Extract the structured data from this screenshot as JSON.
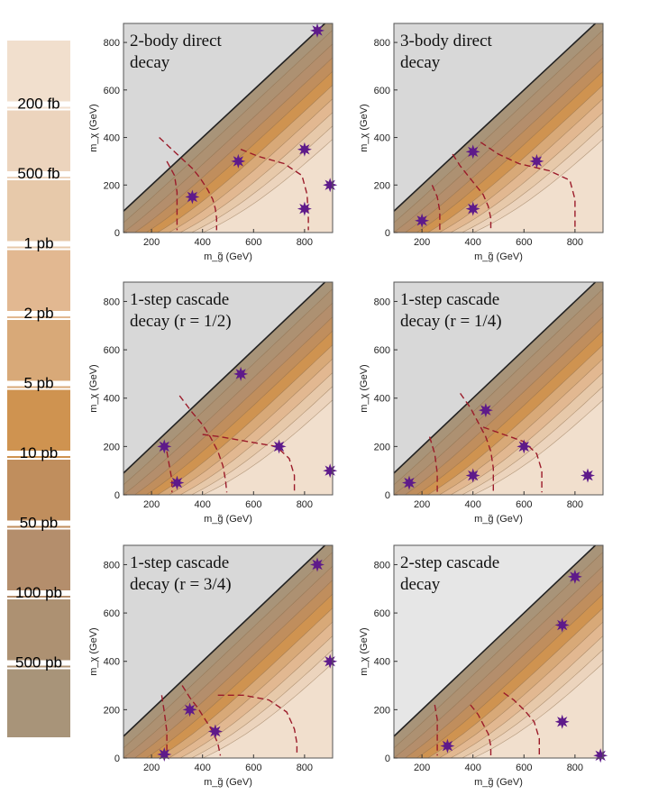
{
  "legend": {
    "swatches": [
      "#f1dfcd",
      "#ecd4bd",
      "#e7c9aa",
      "#e2b891",
      "#d8a978",
      "#cf9350",
      "#c08e5d",
      "#b48e6c",
      "#ad9172",
      "#a89479"
    ],
    "labels": [
      "200 fb",
      "500 fb",
      "1 pb",
      "2 pb",
      "5 pb",
      "10 pb",
      "50 pb",
      "100 pb",
      "500 pb"
    ]
  },
  "chart_data": [
    {
      "type": "contour",
      "title_lines": [
        "2-body direct",
        "decay"
      ],
      "xlabel": "m_g̃ (GeV)",
      "ylabel": "m_χ (GeV)",
      "xlim": [
        90,
        910
      ],
      "ylim": [
        0,
        880
      ],
      "xticks": [
        200,
        400,
        600,
        800
      ],
      "yticks": [
        0,
        200,
        400,
        600,
        800
      ],
      "excluded_region_color": "#d8d8d8",
      "benchmarks": [
        [
          360,
          150
        ],
        [
          540,
          300
        ],
        [
          850,
          850
        ],
        [
          800,
          350
        ],
        [
          800,
          100
        ],
        [
          900,
          200
        ]
      ],
      "dashed_curves": [
        [
          [
            230,
            400
          ],
          [
            270,
            360
          ],
          [
            320,
            310
          ],
          [
            360,
            270
          ],
          [
            390,
            230
          ],
          [
            420,
            180
          ],
          [
            440,
            140
          ],
          [
            450,
            100
          ],
          [
            455,
            60
          ],
          [
            455,
            10
          ]
        ],
        [
          [
            550,
            350
          ],
          [
            620,
            320
          ],
          [
            720,
            290
          ],
          [
            790,
            240
          ],
          [
            810,
            160
          ],
          [
            815,
            60
          ],
          [
            815,
            10
          ]
        ],
        [
          [
            260,
            300
          ],
          [
            290,
            240
          ],
          [
            300,
            170
          ],
          [
            300,
            90
          ],
          [
            300,
            10
          ]
        ]
      ]
    },
    {
      "type": "contour",
      "title_lines": [
        "3-body direct",
        "decay"
      ],
      "xlabel": "m_g̃ (GeV)",
      "ylabel": "m_χ (GeV)",
      "xlim": [
        90,
        910
      ],
      "ylim": [
        0,
        880
      ],
      "xticks": [
        200,
        400,
        600,
        800
      ],
      "yticks": [
        0,
        200,
        400,
        600,
        800
      ],
      "excluded_region_color": "#d8d8d8",
      "benchmarks": [
        [
          200,
          50
        ],
        [
          400,
          100
        ],
        [
          400,
          340
        ],
        [
          650,
          300
        ]
      ],
      "dashed_curves": [
        [
          [
            320,
            330
          ],
          [
            350,
            280
          ],
          [
            380,
            240
          ],
          [
            410,
            200
          ],
          [
            440,
            160
          ],
          [
            460,
            110
          ],
          [
            470,
            60
          ],
          [
            470,
            10
          ]
        ],
        [
          [
            430,
            380
          ],
          [
            500,
            330
          ],
          [
            580,
            290
          ],
          [
            700,
            260
          ],
          [
            780,
            220
          ],
          [
            800,
            140
          ],
          [
            800,
            60
          ],
          [
            800,
            10
          ]
        ],
        [
          [
            240,
            200
          ],
          [
            260,
            150
          ],
          [
            270,
            90
          ],
          [
            270,
            10
          ]
        ]
      ]
    },
    {
      "type": "contour",
      "title_lines": [
        "1-step cascade",
        "decay (r = 1/2)"
      ],
      "xlabel": "m_g̃ (GeV)",
      "ylabel": "m_χ (GeV)",
      "xlim": [
        90,
        910
      ],
      "ylim": [
        0,
        880
      ],
      "xticks": [
        200,
        400,
        600,
        800
      ],
      "yticks": [
        0,
        200,
        400,
        600,
        800
      ],
      "excluded_region_color": "#d8d8d8",
      "benchmarks": [
        [
          250,
          200
        ],
        [
          300,
          50
        ],
        [
          550,
          500
        ],
        [
          700,
          200
        ],
        [
          900,
          100
        ]
      ],
      "dashed_curves": [
        [
          [
            310,
            410
          ],
          [
            360,
            340
          ],
          [
            400,
            290
          ],
          [
            430,
            240
          ],
          [
            460,
            180
          ],
          [
            480,
            120
          ],
          [
            490,
            60
          ],
          [
            495,
            10
          ]
        ],
        [
          [
            400,
            250
          ],
          [
            470,
            240
          ],
          [
            580,
            220
          ],
          [
            690,
            200
          ],
          [
            740,
            150
          ],
          [
            760,
            80
          ],
          [
            760,
            10
          ]
        ],
        [
          [
            260,
            180
          ],
          [
            270,
            120
          ],
          [
            280,
            60
          ],
          [
            280,
            10
          ]
        ]
      ]
    },
    {
      "type": "contour",
      "title_lines": [
        "1-step cascade",
        "decay (r = 1/4)"
      ],
      "xlabel": "m_g̃ (GeV)",
      "ylabel": "m_χ (GeV)",
      "xlim": [
        90,
        910
      ],
      "ylim": [
        0,
        880
      ],
      "xticks": [
        200,
        400,
        600,
        800
      ],
      "yticks": [
        0,
        200,
        400,
        600,
        800
      ],
      "excluded_region_color": "#d8d8d8",
      "benchmarks": [
        [
          150,
          50
        ],
        [
          400,
          80
        ],
        [
          450,
          350
        ],
        [
          600,
          200
        ],
        [
          850,
          80
        ]
      ],
      "dashed_curves": [
        [
          [
            350,
            420
          ],
          [
            390,
            360
          ],
          [
            420,
            300
          ],
          [
            450,
            240
          ],
          [
            470,
            180
          ],
          [
            480,
            110
          ],
          [
            480,
            10
          ]
        ],
        [
          [
            440,
            280
          ],
          [
            520,
            250
          ],
          [
            600,
            220
          ],
          [
            650,
            170
          ],
          [
            670,
            100
          ],
          [
            670,
            10
          ]
        ],
        [
          [
            230,
            240
          ],
          [
            250,
            170
          ],
          [
            260,
            90
          ],
          [
            260,
            10
          ]
        ]
      ]
    },
    {
      "type": "contour",
      "title_lines": [
        "1-step cascade",
        "decay (r = 3/4)"
      ],
      "xlabel": "m_g̃ (GeV)",
      "ylabel": "m_χ (GeV)",
      "xlim": [
        90,
        910
      ],
      "ylim": [
        0,
        880
      ],
      "xticks": [
        200,
        400,
        600,
        800
      ],
      "yticks": [
        0,
        200,
        400,
        600,
        800
      ],
      "excluded_region_color": "#d8d8d8",
      "benchmarks": [
        [
          250,
          15
        ],
        [
          350,
          200
        ],
        [
          450,
          110
        ],
        [
          850,
          800
        ],
        [
          900,
          400
        ]
      ],
      "dashed_curves": [
        [
          [
            320,
            300
          ],
          [
            350,
            250
          ],
          [
            380,
            210
          ],
          [
            410,
            160
          ],
          [
            440,
            110
          ],
          [
            460,
            60
          ],
          [
            470,
            10
          ]
        ],
        [
          [
            460,
            260
          ],
          [
            560,
            260
          ],
          [
            660,
            240
          ],
          [
            730,
            190
          ],
          [
            760,
            120
          ],
          [
            770,
            60
          ],
          [
            770,
            10
          ]
        ],
        [
          [
            240,
            260
          ],
          [
            250,
            190
          ],
          [
            260,
            110
          ],
          [
            260,
            10
          ]
        ]
      ]
    },
    {
      "type": "contour",
      "title_lines": [
        "2-step cascade",
        "decay"
      ],
      "xlabel": "m_g̃ (GeV)",
      "ylabel": "m_χ (GeV)",
      "xlim": [
        90,
        910
      ],
      "ylim": [
        0,
        880
      ],
      "xticks": [
        200,
        400,
        600,
        800
      ],
      "yticks": [
        0,
        200,
        400,
        600,
        800
      ],
      "excluded_region_color": "#e6e6e6",
      "benchmarks": [
        [
          300,
          50
        ],
        [
          750,
          150
        ],
        [
          750,
          550
        ],
        [
          800,
          750
        ],
        [
          900,
          10
        ]
      ],
      "dashed_curves": [
        [
          [
            390,
            220
          ],
          [
            420,
            180
          ],
          [
            440,
            140
          ],
          [
            460,
            100
          ],
          [
            470,
            50
          ],
          [
            470,
            10
          ]
        ],
        [
          [
            520,
            270
          ],
          [
            560,
            240
          ],
          [
            600,
            200
          ],
          [
            640,
            150
          ],
          [
            660,
            80
          ],
          [
            660,
            10
          ]
        ],
        [
          [
            250,
            220
          ],
          [
            260,
            160
          ],
          [
            260,
            80
          ],
          [
            260,
            10
          ]
        ]
      ]
    }
  ]
}
